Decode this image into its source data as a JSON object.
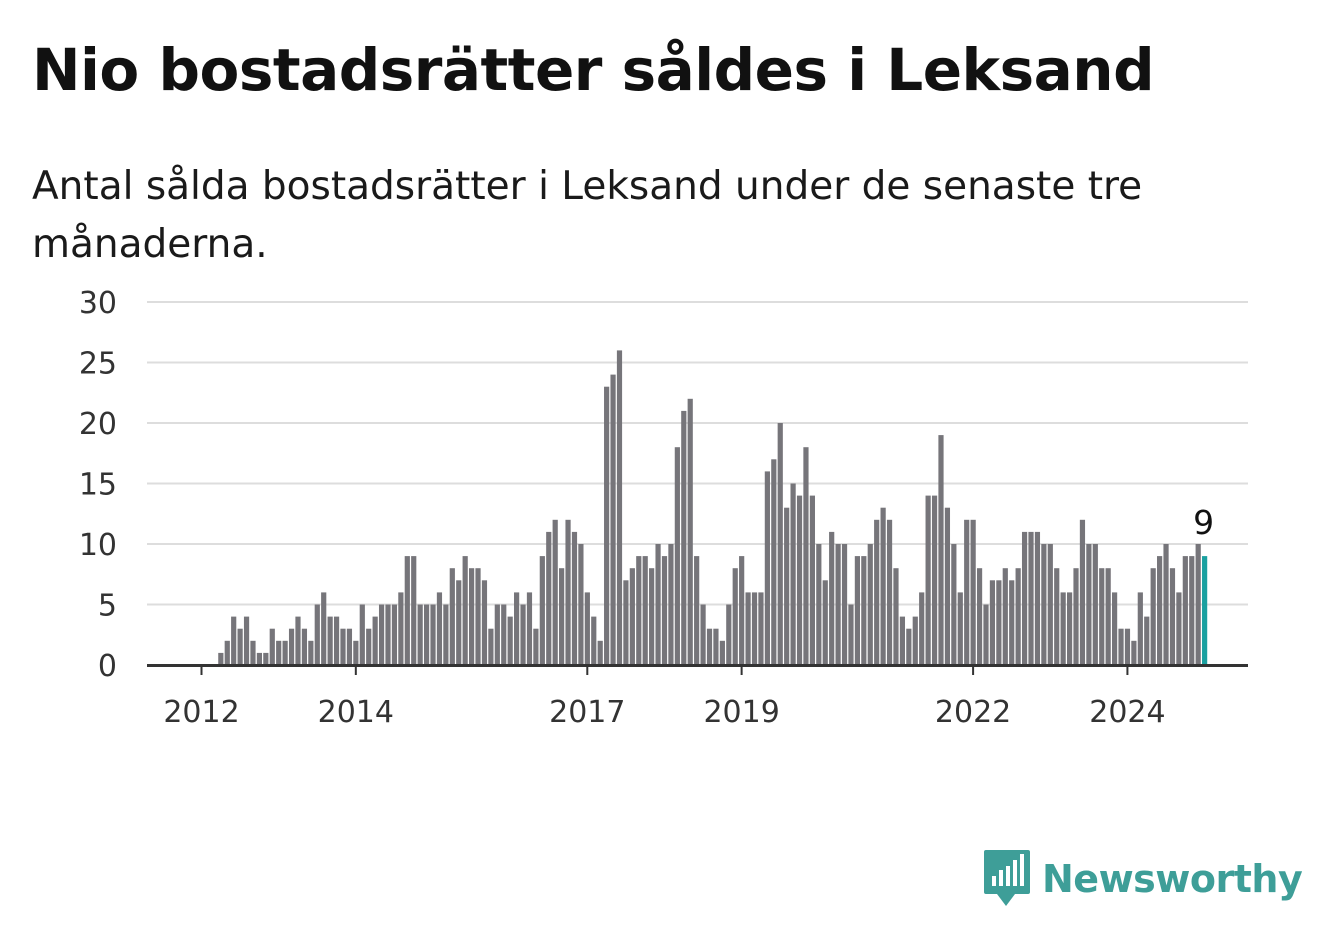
{
  "title": "Nio bostadsrätter såldes i Leksand",
  "subtitle": "Antal sålda bostadsrätter i Leksand under de senaste tre månaderna.",
  "logo_text": "Newsworthy",
  "colors": {
    "bar": "#76757a",
    "highlight": "#1aa0a0",
    "grid": "#dddddd",
    "axis": "#333333",
    "logo": "#3e9e98"
  },
  "chart_data": {
    "type": "bar",
    "title": "Nio bostadsrätter såldes i Leksand",
    "subtitle": "Antal sålda bostadsrätter i Leksand under de senaste tre månaderna.",
    "xlabel": "",
    "ylabel": "",
    "ylim": [
      0,
      30
    ],
    "yticks": [
      0,
      5,
      10,
      15,
      20,
      25,
      30
    ],
    "x_tick_labels": [
      "2012",
      "2014",
      "2017",
      "2019",
      "2022",
      "2024"
    ],
    "grid": true,
    "interval": "monthly, January 2011 – November 2024",
    "values": [
      0,
      0,
      0,
      0,
      0,
      0,
      0,
      0,
      0,
      0,
      0,
      1,
      2,
      4,
      3,
      4,
      2,
      1,
      1,
      3,
      2,
      2,
      3,
      4,
      3,
      2,
      5,
      6,
      4,
      4,
      3,
      3,
      2,
      5,
      3,
      4,
      5,
      5,
      5,
      6,
      9,
      9,
      5,
      5,
      5,
      6,
      5,
      8,
      7,
      9,
      8,
      8,
      7,
      3,
      5,
      5,
      4,
      6,
      5,
      6,
      3,
      9,
      11,
      12,
      8,
      12,
      11,
      10,
      6,
      4,
      2,
      23,
      24,
      26,
      7,
      8,
      9,
      9,
      8,
      10,
      9,
      10,
      18,
      21,
      22,
      9,
      5,
      3,
      3,
      2,
      5,
      8,
      9,
      6,
      6,
      6,
      16,
      17,
      20,
      13,
      15,
      14,
      18,
      14,
      10,
      7,
      11,
      10,
      10,
      5,
      9,
      9,
      10,
      12,
      13,
      12,
      8,
      4,
      3,
      4,
      6,
      14,
      14,
      19,
      13,
      10,
      6,
      12,
      12,
      8,
      5,
      7,
      7,
      8,
      7,
      8,
      11,
      11,
      11,
      10,
      10,
      8,
      6,
      6,
      8,
      12,
      10,
      10,
      8,
      8,
      6,
      3,
      3,
      2,
      6,
      4,
      8,
      9,
      10,
      8,
      6,
      9,
      9,
      10,
      9
    ],
    "highlight_last": true,
    "annotation": {
      "label": "9",
      "value": 9
    }
  }
}
